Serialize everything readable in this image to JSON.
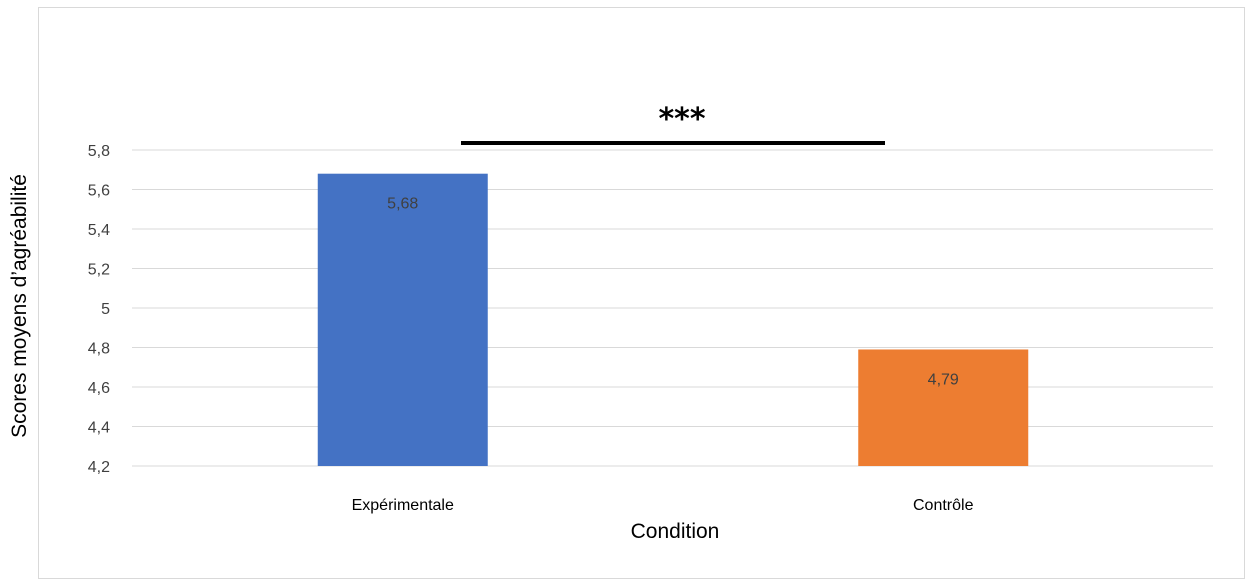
{
  "chart_data": {
    "type": "bar",
    "categories": [
      "Expérimentale",
      "Contrôle"
    ],
    "values": [
      5.68,
      4.79
    ],
    "data_labels": [
      "5,68",
      "4,79"
    ],
    "colors": [
      "#4472c4",
      "#ed7d31"
    ],
    "xlabel": "Condition",
    "ylabel": "Scores moyens d’agréabilité",
    "ylim": [
      4.2,
      5.8
    ],
    "yticks": [
      4.2,
      4.4,
      4.6,
      4.8,
      5.0,
      5.2,
      5.4,
      5.6,
      5.8
    ],
    "ytick_labels": [
      "4,2",
      "4,4",
      "4,6",
      "4,8",
      "5",
      "5,2",
      "5,4",
      "5,6",
      "5,8"
    ],
    "grid": true,
    "annotation": {
      "text": "***",
      "spans": [
        "Expérimentale",
        "Contrôle"
      ]
    }
  }
}
